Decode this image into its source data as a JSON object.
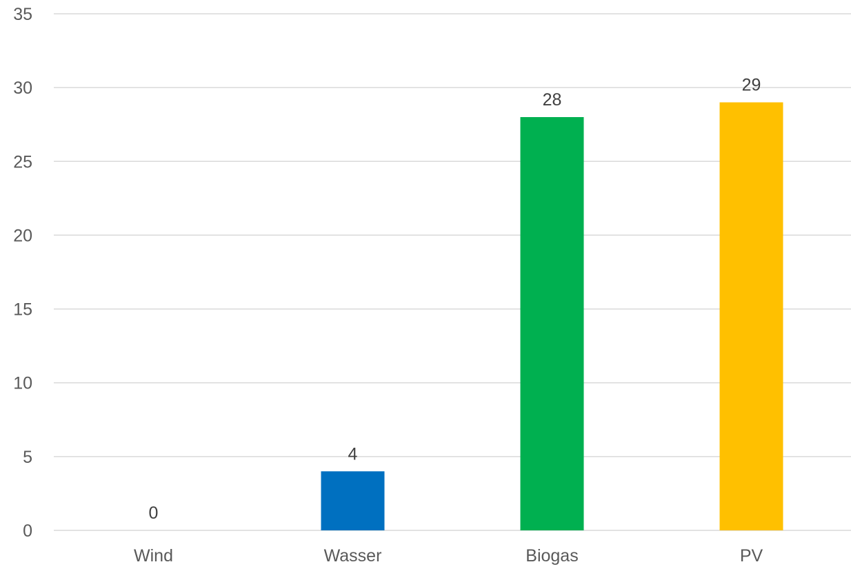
{
  "chart_data": {
    "type": "bar",
    "categories": [
      "Wind",
      "Wasser",
      "Biogas",
      "PV"
    ],
    "values": [
      0,
      4,
      28,
      29
    ],
    "data_labels": [
      "0",
      "4",
      "28",
      "29"
    ],
    "colors": [
      "#0070c0",
      "#0070c0",
      "#00b050",
      "#ffc000"
    ],
    "ylim": [
      0,
      35
    ],
    "yticks": [
      0,
      5,
      10,
      15,
      20,
      25,
      30,
      35
    ],
    "ytick_labels": [
      "0",
      "5",
      "10",
      "15",
      "20",
      "25",
      "30",
      "35"
    ],
    "grid": true,
    "legend": "none"
  }
}
